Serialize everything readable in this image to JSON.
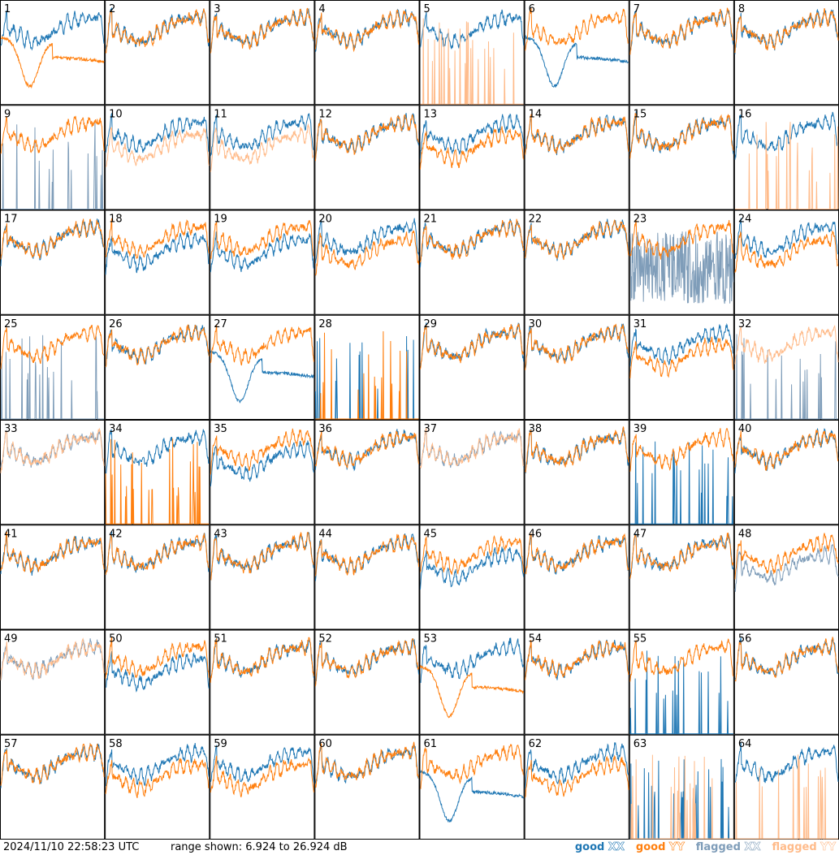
{
  "chart_data": {
    "type": "line",
    "panel_ids": [
      "1",
      "2",
      "3",
      "4",
      "5",
      "6",
      "7",
      "8",
      "9",
      "10",
      "11",
      "12",
      "13",
      "14",
      "15",
      "16",
      "17",
      "18",
      "19",
      "20",
      "21",
      "22",
      "23",
      "24",
      "25",
      "26",
      "27",
      "28",
      "29",
      "30",
      "31",
      "32",
      "33",
      "34",
      "35",
      "36",
      "37",
      "38",
      "39",
      "40",
      "41",
      "42",
      "43",
      "44",
      "45",
      "46",
      "47",
      "48",
      "49",
      "50",
      "51",
      "52",
      "53",
      "54",
      "55",
      "56",
      "57",
      "58",
      "59",
      "60",
      "61",
      "62",
      "63",
      "64"
    ],
    "ylim": [
      6.924,
      26.924
    ],
    "y_unit": "dB",
    "series": [
      {
        "name": "good XX",
        "color": "#1f77b4"
      },
      {
        "name": "good YY",
        "color": "#ff7f0e"
      },
      {
        "name": "flagged XX",
        "color": "#7f9db9"
      },
      {
        "name": "flagged YY",
        "color": "#ffbb8a"
      }
    ],
    "panels": [
      {
        "xx": "good",
        "yy": "good",
        "xx_shape": "normal",
        "yy_shape": "dip"
      },
      {
        "xx": "good",
        "yy": "good",
        "xx_shape": "normal",
        "yy_shape": "normal"
      },
      {
        "xx": "good",
        "yy": "good",
        "xx_shape": "normal",
        "yy_shape": "normal"
      },
      {
        "xx": "good",
        "yy": "good",
        "xx_shape": "normal",
        "yy_shape": "normal"
      },
      {
        "xx": "good",
        "yy": "flagged",
        "xx_shape": "normal",
        "yy_shape": "spiky"
      },
      {
        "xx": "good",
        "yy": "good",
        "xx_shape": "dip",
        "yy_shape": "normal"
      },
      {
        "xx": "good",
        "yy": "good",
        "xx_shape": "normal",
        "yy_shape": "normal"
      },
      {
        "xx": "good",
        "yy": "good",
        "xx_shape": "normal",
        "yy_shape": "normal"
      },
      {
        "xx": "flagged",
        "yy": "good",
        "xx_shape": "spiky",
        "yy_shape": "normal"
      },
      {
        "xx": "good",
        "yy": "flagged",
        "xx_shape": "normal",
        "yy_shape": "low"
      },
      {
        "xx": "good",
        "yy": "flagged",
        "xx_shape": "normal",
        "yy_shape": "low"
      },
      {
        "xx": "good",
        "yy": "good",
        "xx_shape": "normal",
        "yy_shape": "normal"
      },
      {
        "xx": "good",
        "yy": "good",
        "xx_shape": "normal",
        "yy_shape": "low"
      },
      {
        "xx": "good",
        "yy": "good",
        "xx_shape": "normal",
        "yy_shape": "normal"
      },
      {
        "xx": "good",
        "yy": "good",
        "xx_shape": "normal",
        "yy_shape": "normal"
      },
      {
        "xx": "good",
        "yy": "flagged",
        "xx_shape": "normal",
        "yy_shape": "spiky"
      },
      {
        "xx": "good",
        "yy": "good",
        "xx_shape": "normal",
        "yy_shape": "normal"
      },
      {
        "xx": "good",
        "yy": "good",
        "xx_shape": "low",
        "yy_shape": "normal"
      },
      {
        "xx": "good",
        "yy": "good",
        "xx_shape": "low",
        "yy_shape": "normal"
      },
      {
        "xx": "good",
        "yy": "good",
        "xx_shape": "normal",
        "yy_shape": "low"
      },
      {
        "xx": "good",
        "yy": "good",
        "xx_shape": "normal",
        "yy_shape": "normal"
      },
      {
        "xx": "good",
        "yy": "good",
        "xx_shape": "normal",
        "yy_shape": "normal"
      },
      {
        "xx": "flagged",
        "yy": "good",
        "xx_shape": "noisy",
        "yy_shape": "normal"
      },
      {
        "xx": "good",
        "yy": "good",
        "xx_shape": "normal",
        "yy_shape": "low"
      },
      {
        "xx": "flagged",
        "yy": "good",
        "xx_shape": "spiky",
        "yy_shape": "normal"
      },
      {
        "xx": "good",
        "yy": "good",
        "xx_shape": "normal",
        "yy_shape": "normal"
      },
      {
        "xx": "good",
        "yy": "good",
        "xx_shape": "dip",
        "yy_shape": "normal"
      },
      {
        "xx": "good",
        "yy": "good",
        "xx_shape": "spiky",
        "yy_shape": "spiky"
      },
      {
        "xx": "good",
        "yy": "good",
        "xx_shape": "normal",
        "yy_shape": "normal"
      },
      {
        "xx": "good",
        "yy": "good",
        "xx_shape": "normal",
        "yy_shape": "normal"
      },
      {
        "xx": "good",
        "yy": "good",
        "xx_shape": "normal",
        "yy_shape": "low"
      },
      {
        "xx": "flagged",
        "yy": "flagged",
        "xx_shape": "spiky",
        "yy_shape": "normal"
      },
      {
        "xx": "flagged",
        "yy": "flagged",
        "xx_shape": "normal",
        "yy_shape": "normal"
      },
      {
        "xx": "good",
        "yy": "good",
        "xx_shape": "normal",
        "yy_shape": "spiky"
      },
      {
        "xx": "good",
        "yy": "good",
        "xx_shape": "low",
        "yy_shape": "normal"
      },
      {
        "xx": "good",
        "yy": "good",
        "xx_shape": "normal",
        "yy_shape": "normal"
      },
      {
        "xx": "flagged",
        "yy": "flagged",
        "xx_shape": "normal",
        "yy_shape": "normal"
      },
      {
        "xx": "good",
        "yy": "good",
        "xx_shape": "normal",
        "yy_shape": "normal"
      },
      {
        "xx": "good",
        "yy": "good",
        "xx_shape": "spiky",
        "yy_shape": "normal"
      },
      {
        "xx": "good",
        "yy": "good",
        "xx_shape": "normal",
        "yy_shape": "normal"
      },
      {
        "xx": "good",
        "yy": "good",
        "xx_shape": "normal",
        "yy_shape": "normal"
      },
      {
        "xx": "good",
        "yy": "good",
        "xx_shape": "normal",
        "yy_shape": "normal"
      },
      {
        "xx": "good",
        "yy": "good",
        "xx_shape": "normal",
        "yy_shape": "normal"
      },
      {
        "xx": "good",
        "yy": "good",
        "xx_shape": "normal",
        "yy_shape": "normal"
      },
      {
        "xx": "good",
        "yy": "good",
        "xx_shape": "low",
        "yy_shape": "normal"
      },
      {
        "xx": "good",
        "yy": "good",
        "xx_shape": "normal",
        "yy_shape": "normal"
      },
      {
        "xx": "good",
        "yy": "good",
        "xx_shape": "normal",
        "yy_shape": "normal"
      },
      {
        "xx": "flagged",
        "yy": "good",
        "xx_shape": "low",
        "yy_shape": "normal"
      },
      {
        "xx": "flagged",
        "yy": "flagged",
        "xx_shape": "normal",
        "yy_shape": "normal"
      },
      {
        "xx": "good",
        "yy": "good",
        "xx_shape": "low",
        "yy_shape": "normal"
      },
      {
        "xx": "good",
        "yy": "good",
        "xx_shape": "normal",
        "yy_shape": "normal"
      },
      {
        "xx": "good",
        "yy": "good",
        "xx_shape": "normal",
        "yy_shape": "normal"
      },
      {
        "xx": "good",
        "yy": "good",
        "xx_shape": "normal",
        "yy_shape": "dip"
      },
      {
        "xx": "good",
        "yy": "good",
        "xx_shape": "normal",
        "yy_shape": "normal"
      },
      {
        "xx": "good",
        "yy": "good",
        "xx_shape": "spiky",
        "yy_shape": "normal"
      },
      {
        "xx": "good",
        "yy": "good",
        "xx_shape": "normal",
        "yy_shape": "normal"
      },
      {
        "xx": "good",
        "yy": "good",
        "xx_shape": "normal",
        "yy_shape": "normal"
      },
      {
        "xx": "good",
        "yy": "good",
        "xx_shape": "normal",
        "yy_shape": "low"
      },
      {
        "xx": "good",
        "yy": "good",
        "xx_shape": "normal",
        "yy_shape": "low"
      },
      {
        "xx": "good",
        "yy": "good",
        "xx_shape": "normal",
        "yy_shape": "normal"
      },
      {
        "xx": "good",
        "yy": "good",
        "xx_shape": "dip",
        "yy_shape": "normal"
      },
      {
        "xx": "good",
        "yy": "good",
        "xx_shape": "normal",
        "yy_shape": "low"
      },
      {
        "xx": "good",
        "yy": "flagged",
        "xx_shape": "spiky",
        "yy_shape": "spiky"
      },
      {
        "xx": "good",
        "yy": "flagged",
        "xx_shape": "normal",
        "yy_shape": "spiky"
      }
    ]
  },
  "footer": {
    "timestamp": "2024/11/10 22:58:23 UTC",
    "range_text": "range shown: 6.924 to 26.924 dB"
  },
  "legend": [
    {
      "prefix": "good",
      "code": "XX",
      "color": "#1f77b4"
    },
    {
      "prefix": "good",
      "code": "YY",
      "color": "#ff7f0e"
    },
    {
      "prefix": "flagged",
      "code": "XX",
      "color": "#7f9db9"
    },
    {
      "prefix": "flagged",
      "code": "YY",
      "color": "#ffbb8a"
    }
  ]
}
